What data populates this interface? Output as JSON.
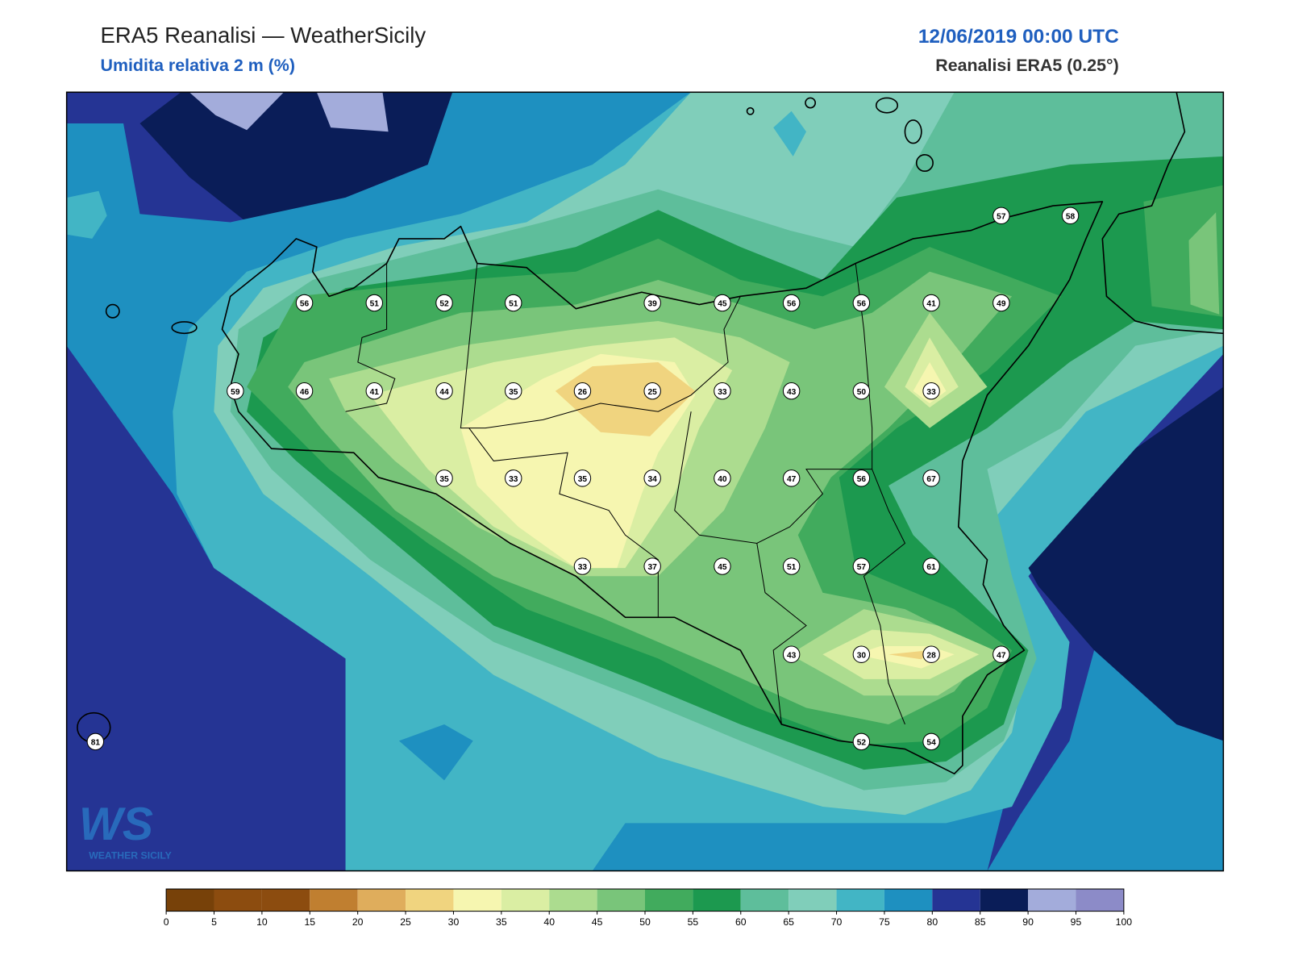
{
  "header": {
    "title": "ERA5 Reanalisi — WeatherSicily",
    "subtitle": "Umidita relativa 2 m (%)",
    "valid_time": "12/06/2019 00:00 UTC",
    "source": "Reanalisi ERA5 (0.25°)"
  },
  "logo": {
    "mark": "WS",
    "name": "WEATHER SICILY"
  },
  "station_values": [
    57,
    58,
    56,
    51,
    52,
    51,
    39,
    45,
    56,
    56,
    41,
    49,
    59,
    46,
    41,
    44,
    35,
    26,
    25,
    33,
    43,
    50,
    33,
    35,
    33,
    35,
    34,
    40,
    47,
    56,
    67,
    33,
    37,
    45,
    51,
    57,
    61,
    43,
    30,
    28,
    47,
    81,
    52,
    54
  ],
  "colorbar": {
    "bounds": [
      0,
      5,
      10,
      15,
      20,
      25,
      30,
      35,
      40,
      45,
      50,
      55,
      60,
      65,
      70,
      75,
      80,
      85,
      90,
      95,
      100
    ],
    "colors": [
      "#774109",
      "#8c4c0f",
      "#8c4c0f",
      "#c07f30",
      "#dfad5c",
      "#f0d47f",
      "#f6f6b0",
      "#daeea3",
      "#acdc8f",
      "#79c57a",
      "#41ab5d",
      "#1c994f",
      "#5ebe9b",
      "#80ceba",
      "#42b5c5",
      "#1e90c0",
      "#253494",
      "#0a1d58",
      "#a3acdb",
      "#8c8bc8"
    ]
  }
}
